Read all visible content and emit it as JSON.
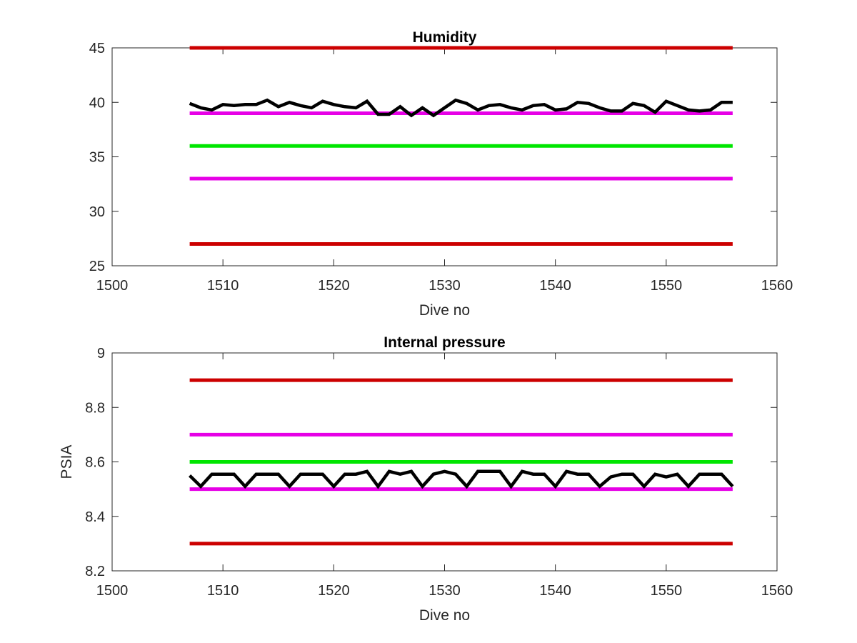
{
  "chart_data": [
    {
      "type": "line",
      "title": "Humidity",
      "xlabel": "Dive no",
      "ylabel": "",
      "xlim": [
        1500,
        1560
      ],
      "ylim": [
        25,
        45
      ],
      "xticks": [
        "1500",
        "1510",
        "1520",
        "1530",
        "1540",
        "1550",
        "1560"
      ],
      "yticks": [
        "25",
        "30",
        "35",
        "40",
        "45"
      ],
      "grid": false,
      "series": [
        {
          "color": "#cc0000",
          "x": [
            1507,
            1556
          ],
          "y": [
            45,
            45
          ]
        },
        {
          "color": "#e600e6",
          "x": [
            1507,
            1556
          ],
          "y": [
            39,
            39
          ]
        },
        {
          "color": "#00e600",
          "x": [
            1507,
            1556
          ],
          "y": [
            36,
            36
          ]
        },
        {
          "color": "#e600e6",
          "x": [
            1507,
            1556
          ],
          "y": [
            33,
            33
          ]
        },
        {
          "color": "#cc0000",
          "x": [
            1507,
            1556
          ],
          "y": [
            27,
            27
          ]
        },
        {
          "color": "#000000",
          "x": [
            1507,
            1508,
            1509,
            1510,
            1511,
            1512,
            1513,
            1514,
            1515,
            1516,
            1517,
            1518,
            1519,
            1520,
            1521,
            1522,
            1523,
            1524,
            1525,
            1526,
            1527,
            1528,
            1529,
            1530,
            1531,
            1532,
            1533,
            1534,
            1535,
            1536,
            1537,
            1538,
            1539,
            1540,
            1541,
            1542,
            1543,
            1544,
            1545,
            1546,
            1547,
            1548,
            1549,
            1550,
            1551,
            1552,
            1553,
            1554,
            1555,
            1556
          ],
          "y": [
            39.9,
            39.5,
            39.3,
            39.8,
            39.7,
            39.8,
            39.8,
            40.2,
            39.6,
            40.0,
            39.7,
            39.5,
            40.1,
            39.8,
            39.6,
            39.5,
            40.1,
            38.9,
            38.9,
            39.6,
            38.8,
            39.5,
            38.8,
            39.5,
            40.2,
            39.9,
            39.3,
            39.7,
            39.8,
            39.5,
            39.3,
            39.7,
            39.8,
            39.3,
            39.4,
            40.0,
            39.9,
            39.5,
            39.2,
            39.2,
            39.9,
            39.7,
            39.1,
            40.1,
            39.7,
            39.3,
            39.2,
            39.3,
            40.0,
            40.0
          ]
        }
      ]
    },
    {
      "type": "line",
      "title": "Internal pressure",
      "xlabel": "Dive no",
      "ylabel": "PSIA",
      "xlim": [
        1500,
        1560
      ],
      "ylim": [
        8.2,
        9.0
      ],
      "xticks": [
        "1500",
        "1510",
        "1520",
        "1530",
        "1540",
        "1550",
        "1560"
      ],
      "yticks": [
        "8.2",
        "8.4",
        "8.6",
        "8.8",
        "9"
      ],
      "grid": false,
      "series": [
        {
          "color": "#cc0000",
          "x": [
            1507,
            1556
          ],
          "y": [
            8.9,
            8.9
          ]
        },
        {
          "color": "#e600e6",
          "x": [
            1507,
            1556
          ],
          "y": [
            8.7,
            8.7
          ]
        },
        {
          "color": "#00e600",
          "x": [
            1507,
            1556
          ],
          "y": [
            8.6,
            8.6
          ]
        },
        {
          "color": "#e600e6",
          "x": [
            1507,
            1556
          ],
          "y": [
            8.5,
            8.5
          ]
        },
        {
          "color": "#cc0000",
          "x": [
            1507,
            1556
          ],
          "y": [
            8.3,
            8.3
          ]
        },
        {
          "color": "#000000",
          "x": [
            1507,
            1508,
            1509,
            1510,
            1511,
            1512,
            1513,
            1514,
            1515,
            1516,
            1517,
            1518,
            1519,
            1520,
            1521,
            1522,
            1523,
            1524,
            1525,
            1526,
            1527,
            1528,
            1529,
            1530,
            1531,
            1532,
            1533,
            1534,
            1535,
            1536,
            1537,
            1538,
            1539,
            1540,
            1541,
            1542,
            1543,
            1544,
            1545,
            1546,
            1547,
            1548,
            1549,
            1550,
            1551,
            1552,
            1553,
            1554,
            1555,
            1556
          ],
          "y": [
            8.55,
            8.51,
            8.555,
            8.555,
            8.555,
            8.51,
            8.555,
            8.555,
            8.555,
            8.51,
            8.555,
            8.555,
            8.555,
            8.51,
            8.555,
            8.555,
            8.565,
            8.51,
            8.565,
            8.555,
            8.565,
            8.51,
            8.555,
            8.565,
            8.555,
            8.51,
            8.565,
            8.565,
            8.565,
            8.51,
            8.565,
            8.555,
            8.555,
            8.51,
            8.565,
            8.555,
            8.555,
            8.51,
            8.545,
            8.555,
            8.555,
            8.51,
            8.555,
            8.545,
            8.555,
            8.51,
            8.555,
            8.555,
            8.555,
            8.51
          ]
        }
      ]
    }
  ]
}
